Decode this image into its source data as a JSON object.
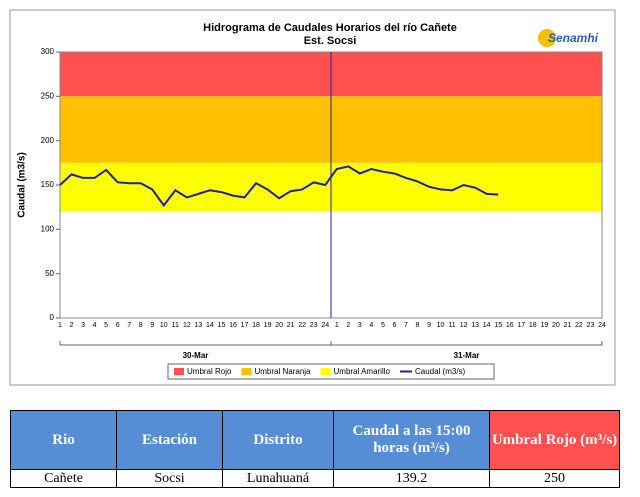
{
  "chart_data": {
    "type": "line",
    "title": "Hidrograma de Caudales Horarios del río Cañete",
    "subtitle": "Est. Socsi",
    "logo": "Senamhi",
    "y_label": "Caudal  (m3/s)",
    "categories": [
      "1",
      "2",
      "3",
      "4",
      "5",
      "6",
      "7",
      "8",
      "9",
      "10",
      "11",
      "12",
      "13",
      "14",
      "15",
      "16",
      "17",
      "18",
      "19",
      "20",
      "21",
      "22",
      "23",
      "24",
      "1",
      "2",
      "3",
      "4",
      "5",
      "6",
      "7",
      "8",
      "9",
      "10",
      "11",
      "12",
      "13",
      "14",
      "15",
      "16",
      "17",
      "18",
      "19",
      "20",
      "21",
      "22",
      "23",
      "24"
    ],
    "days": [
      "30-Mar",
      "31-Mar"
    ],
    "bands": [
      {
        "name": "Umbral Rojo",
        "color": "#ff5050",
        "from": 250,
        "to": 300
      },
      {
        "name": "Umbral Naranja",
        "color": "#ffc000",
        "from": 175,
        "to": 250
      },
      {
        "name": "Umbral Amarillo",
        "color": "#ffff00",
        "from": 120,
        "to": 175
      }
    ],
    "series": [
      {
        "name": "Caudal (m3/s)",
        "color": "#1f1fa8",
        "values": [
          150,
          162,
          158,
          158,
          167,
          153,
          152,
          152,
          145,
          127,
          144,
          136,
          140,
          144,
          142,
          138,
          136,
          152,
          145,
          135,
          143,
          145,
          153,
          150,
          168,
          171,
          163,
          168,
          165,
          163,
          158,
          154,
          148,
          145,
          144,
          150,
          147,
          140,
          139.2,
          null,
          null,
          null,
          null,
          null,
          null,
          null,
          null,
          null
        ]
      }
    ],
    "ylim": [
      0,
      300
    ],
    "yticks": [
      0,
      50,
      100,
      150,
      200,
      250,
      300
    ]
  },
  "table": {
    "header": [
      "Rio",
      "Estación",
      "Distrito",
      "Caudal a las 15:00 horas (m³/s)",
      "Umbral Rojo (m³/s)"
    ],
    "rows": [
      [
        "Cañete",
        "Socsi",
        "Lunahuaná",
        "139.2",
        "250"
      ]
    ]
  }
}
